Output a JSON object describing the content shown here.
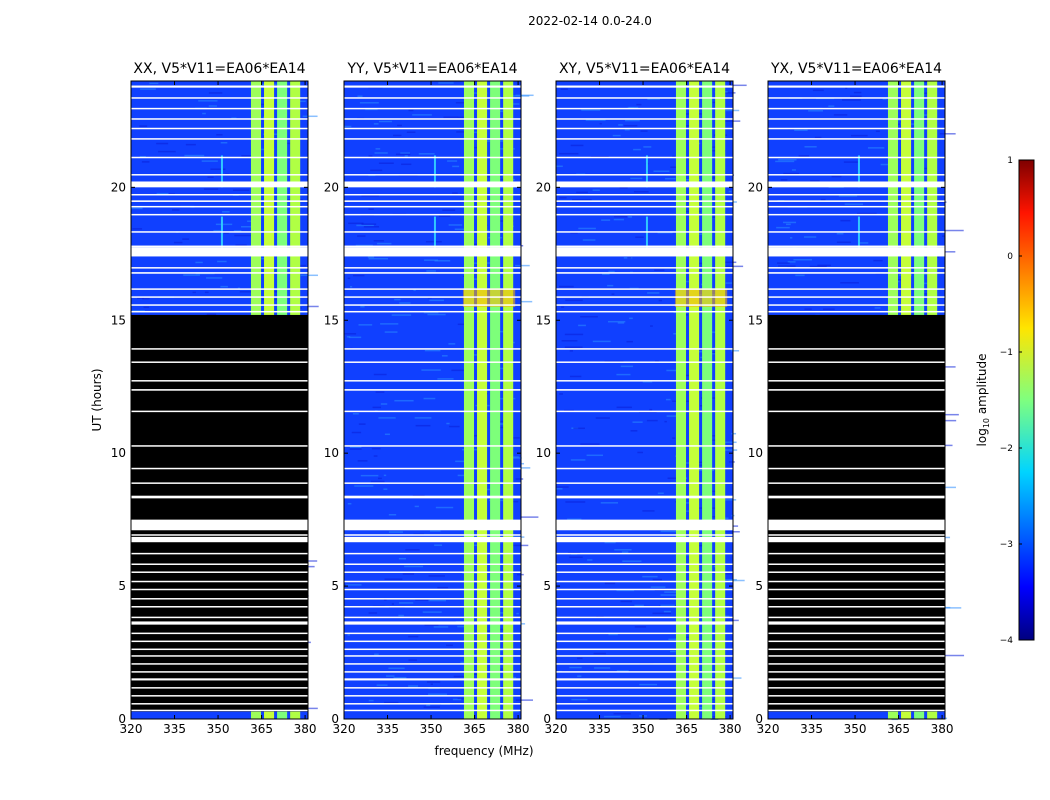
{
  "chart_data": {
    "type": "heatmap",
    "suptitle": "2022-02-14 0.0-24.0",
    "xlabel": "frequency (MHz)",
    "ylabel": "UT (hours)",
    "xlim": [
      320,
      381
    ],
    "ylim": [
      0,
      24
    ],
    "xticks": [
      320,
      335,
      350,
      365,
      380
    ],
    "yticks": [
      0,
      5,
      10,
      15,
      20
    ],
    "panels": [
      {
        "title": "XX, V5*V11=EA06*EA14",
        "flagged_ut_range": [
          0.0,
          15.2
        ]
      },
      {
        "title": "YY, V5*V11=EA06*EA14",
        "flagged_ut_range": null
      },
      {
        "title": "XY, V5*V11=EA06*EA14",
        "flagged_ut_range": null
      },
      {
        "title": "YX, V5*V11=EA06*EA14",
        "flagged_ut_range": [
          0.0,
          15.2
        ]
      }
    ],
    "rfi_band_mhz": [
      361,
      379
    ],
    "colorbar": {
      "label": "log10 amplitude",
      "label_prefix": "log",
      "label_sub": "10",
      "label_suffix": " amplitude",
      "range": [
        -4,
        1
      ],
      "ticks": [
        "1",
        "0",
        "−1",
        "−2",
        "−3",
        "−4"
      ],
      "colormap": "jet"
    }
  }
}
